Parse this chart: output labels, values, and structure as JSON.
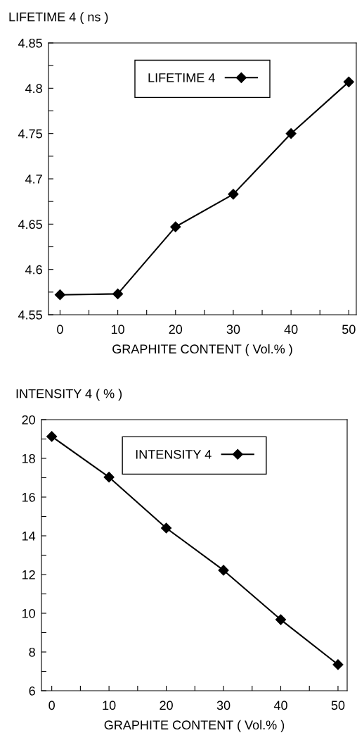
{
  "chart_data": [
    {
      "type": "line",
      "ylabel": "LIFETIME 4 ( ns )",
      "xlabel": "GRAPHITE CONTENT ( Vol.% )",
      "x": [
        0,
        10,
        20,
        30,
        40,
        50
      ],
      "series": [
        {
          "name": "LIFETIME 4",
          "color": "#000000",
          "values": [
            4.572,
            4.573,
            4.647,
            4.683,
            4.75,
            4.807
          ]
        }
      ],
      "xlim": [
        -2,
        51.3
      ],
      "ylim": [
        4.55,
        4.85
      ],
      "xticks": [
        0,
        {
          "value": 5,
          "label": null
        },
        10,
        {
          "value": 15,
          "label": null
        },
        20,
        {
          "value": 25,
          "label": null
        },
        30,
        {
          "value": 35,
          "label": null
        },
        40,
        {
          "value": 45,
          "label": null
        },
        50
      ],
      "yticks": [
        4.55,
        {
          "value": 4.575,
          "label": null
        },
        4.6,
        {
          "value": 4.625,
          "label": null
        },
        4.65,
        {
          "value": 4.675,
          "label": null
        },
        4.7,
        {
          "value": 4.725,
          "label": null
        },
        4.75,
        {
          "value": 4.775,
          "label": null
        },
        4.8,
        {
          "value": 4.825,
          "label": null
        },
        4.85
      ],
      "marker": "diamond",
      "line_style": "solid",
      "legend": "top",
      "grid": false
    },
    {
      "type": "line",
      "ylabel": "INTENSITY 4 ( % )",
      "xlabel": "GRAPHITE CONTENT ( Vol.% )",
      "x": [
        0,
        10,
        20,
        30,
        40,
        50
      ],
      "series": [
        {
          "name": "INTENSITY 4",
          "color": "#000000",
          "values": [
            19.13,
            17.03,
            14.4,
            12.22,
            9.67,
            7.35
          ]
        }
      ],
      "xlim": [
        -1.8,
        51.6
      ],
      "ylim": [
        6,
        20
      ],
      "xticks": [
        0,
        {
          "value": 5,
          "label": null
        },
        10,
        {
          "value": 15,
          "label": null
        },
        20,
        {
          "value": 25,
          "label": null
        },
        30,
        {
          "value": 35,
          "label": null
        },
        40,
        {
          "value": 45,
          "label": null
        },
        50
      ],
      "yticks": [
        6,
        {
          "value": 7,
          "label": null
        },
        8,
        {
          "value": 9,
          "label": null
        },
        10,
        {
          "value": 11,
          "label": null
        },
        12,
        {
          "value": 13,
          "label": null
        },
        14,
        {
          "value": 15,
          "label": null
        },
        16,
        {
          "value": 17,
          "label": null
        },
        18,
        {
          "value": 19,
          "label": null
        },
        20
      ],
      "marker": "diamond",
      "line_style": "solid",
      "legend": "top",
      "grid": false
    }
  ]
}
